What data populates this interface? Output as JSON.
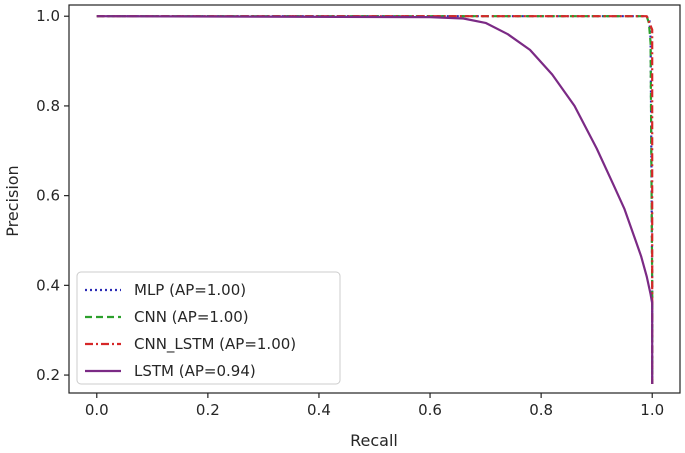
{
  "chart_data": {
    "type": "line",
    "title": "",
    "xlabel": "Recall",
    "ylabel": "Precision",
    "xlim": [
      -0.05,
      1.05
    ],
    "ylim": [
      0.16,
      1.025
    ],
    "xticks": [
      "0.0",
      "0.2",
      "0.4",
      "0.6",
      "0.8",
      "1.0"
    ],
    "xtick_values": [
      0.0,
      0.2,
      0.4,
      0.6,
      0.8,
      1.0
    ],
    "yticks": [
      "0.2",
      "0.4",
      "0.6",
      "0.8",
      "1.0"
    ],
    "ytick_values": [
      0.2,
      0.4,
      0.6,
      0.8,
      1.0
    ],
    "grid": false,
    "legend_position": "lower-left",
    "series": [
      {
        "name": "MLP (AP=1.00)",
        "color": "#2b2bb5",
        "style": "dotted",
        "x": [
          0.0,
          0.99,
          0.995,
          0.997,
          1.0,
          1.0
        ],
        "y": [
          1.0,
          1.0,
          0.99,
          0.95,
          0.4,
          0.18
        ]
      },
      {
        "name": "CNN (AP=1.00)",
        "color": "#2ca02c",
        "style": "dashed",
        "x": [
          0.0,
          0.99,
          0.994,
          0.997,
          1.0,
          1.0
        ],
        "y": [
          1.0,
          1.0,
          0.985,
          0.94,
          0.4,
          0.18
        ]
      },
      {
        "name": "CNN_LSTM (AP=1.00)",
        "color": "#d62728",
        "style": "dashdot",
        "x": [
          0.0,
          0.99,
          1.0,
          1.0
        ],
        "y": [
          1.0,
          1.0,
          0.97,
          0.18
        ]
      },
      {
        "name": "LSTM (AP=0.94)",
        "color": "#7b2a85",
        "style": "solid",
        "x": [
          0.0,
          0.6,
          0.66,
          0.7,
          0.74,
          0.78,
          0.82,
          0.86,
          0.9,
          0.93,
          0.95,
          0.97,
          0.98,
          0.99,
          0.997,
          1.0,
          1.0
        ],
        "y": [
          1.0,
          0.998,
          0.995,
          0.985,
          0.96,
          0.925,
          0.87,
          0.8,
          0.705,
          0.625,
          0.57,
          0.5,
          0.465,
          0.42,
          0.38,
          0.36,
          0.18
        ]
      }
    ]
  }
}
